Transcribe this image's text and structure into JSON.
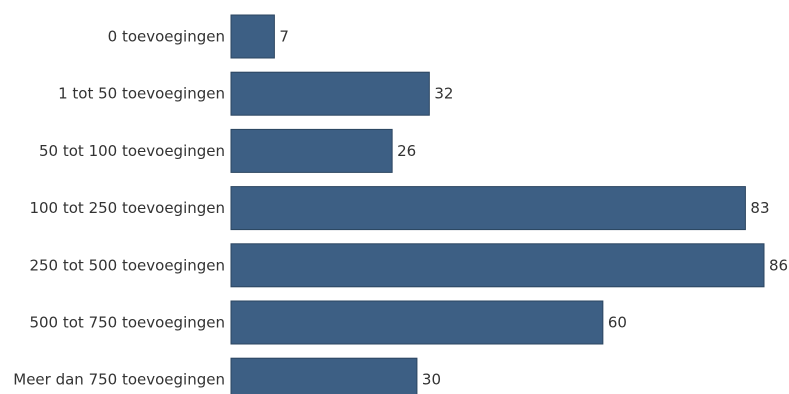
{
  "chart_data": {
    "type": "bar",
    "orientation": "horizontal",
    "categories": [
      "0 toevoegingen",
      "1 tot 50 toevoegingen",
      "50 tot 100 toevoegingen",
      "100 tot 250 toevoegingen",
      "250 tot 500 toevoegingen",
      "500 tot 750 toevoegingen",
      "Meer dan 750 toevoegingen"
    ],
    "values": [
      7,
      32,
      26,
      83,
      86,
      60,
      30
    ],
    "title": "",
    "xlabel": "",
    "ylabel": "",
    "xlim": [
      0,
      86
    ],
    "grid": false,
    "legend": "none",
    "bar_color": "#3d5f84"
  }
}
